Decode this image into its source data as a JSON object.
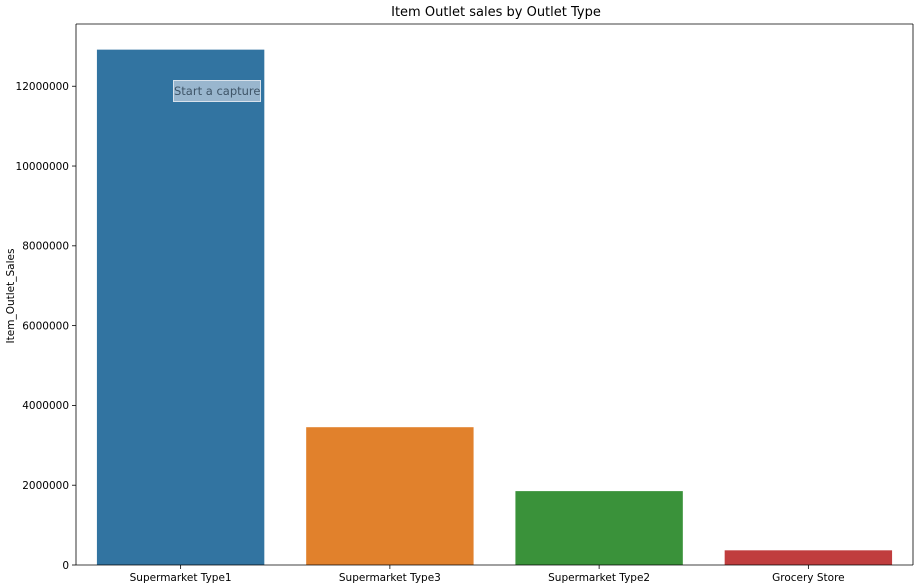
{
  "chart_data": {
    "type": "bar",
    "title": "Item Outlet sales by Outlet Type",
    "xlabel": "",
    "ylabel": "Item_Outlet_Sales",
    "categories": [
      "Supermarket Type1",
      "Supermarket Type3",
      "Supermarket Type2",
      "Grocery Store"
    ],
    "values": [
      12917342,
      3453926,
      1851822,
      368034
    ],
    "colors": [
      "#3274a1",
      "#e1812c",
      "#3a923a",
      "#c03d3e"
    ],
    "ylim": [
      0,
      13560000
    ],
    "yticks": [
      0,
      2000000,
      4000000,
      6000000,
      8000000,
      10000000,
      12000000
    ],
    "ytick_labels": [
      "0",
      "2000000",
      "4000000",
      "6000000",
      "8000000",
      "10000000",
      "12000000"
    ],
    "grid": false,
    "legend": "none"
  },
  "tooltip": {
    "label": "Start a capture"
  }
}
